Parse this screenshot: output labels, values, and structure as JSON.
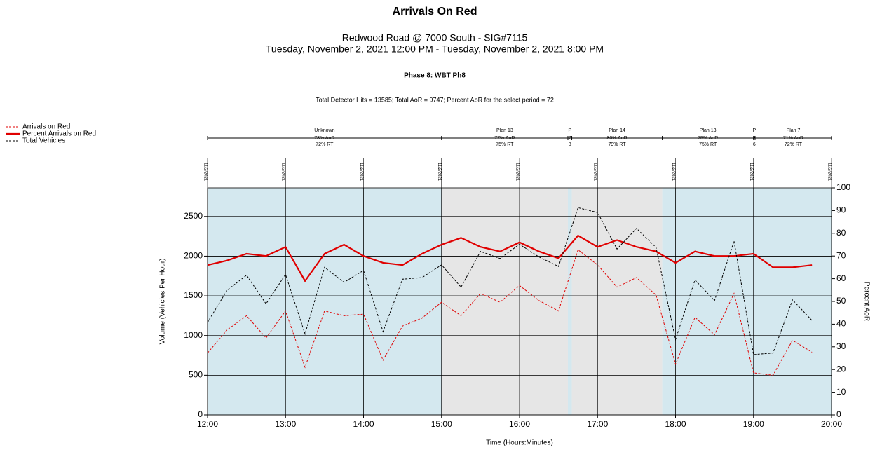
{
  "chart_data": {
    "type": "line",
    "title": "Arrivals On Red",
    "subtitle": [
      "Redwood Road @ 7000 South - SIG#7115",
      "Tuesday, November 2, 2021 12:00 PM - Tuesday, November 2, 2021 8:00 PM"
    ],
    "phase": "Phase 8: WBT Ph8",
    "summary": "Total Detector Hits = 13585; Total AoR = 9747; Percent AoR for the select period = 72",
    "x_label": "Time (Hours:Minutes)",
    "y_label": "Volume (Vehicles Per Hour)",
    "y2_label": "Percent AoR",
    "x": [
      12,
      12.25,
      12.5,
      12.75,
      13,
      13.25,
      13.5,
      13.75,
      14,
      14.25,
      14.5,
      14.75,
      15,
      15.25,
      15.5,
      15.75,
      16,
      16.25,
      16.5,
      16.75,
      17,
      17.25,
      17.5,
      17.75,
      18,
      18.25,
      18.5,
      18.75,
      19,
      19.25,
      19.5,
      19.75
    ],
    "xlim": [
      12,
      20
    ],
    "xticks": [
      {
        "value": 12,
        "label": "12:00"
      },
      {
        "value": 13,
        "label": "13:00"
      },
      {
        "value": 14,
        "label": "14:00"
      },
      {
        "value": 15,
        "label": "15:00"
      },
      {
        "value": 16,
        "label": "16:00"
      },
      {
        "value": 17,
        "label": "17:00"
      },
      {
        "value": 18,
        "label": "18:00"
      },
      {
        "value": 19,
        "label": "19:00"
      },
      {
        "value": 20,
        "label": "20:00"
      }
    ],
    "date_labels": [
      "11/2/2021",
      "11/2/2021",
      "11/2/2021",
      "11/2/2021",
      "11/2/2021",
      "11/2/2021",
      "11/2/2021",
      "11/2/2021",
      "11/2/2021"
    ],
    "ylim": [
      0,
      2860
    ],
    "yticks": [
      0,
      500,
      1000,
      1500,
      2000,
      2500
    ],
    "y2lim": [
      0,
      100
    ],
    "y2ticks": [
      0,
      10,
      20,
      30,
      40,
      50,
      60,
      70,
      80,
      90,
      100
    ],
    "grid": true,
    "legend": "top-left",
    "series": [
      {
        "name": "Arrivals on Red",
        "color": "#e00000",
        "dash": true,
        "width": 1,
        "values": [
          780,
          1070,
          1250,
          970,
          1310,
          600,
          1310,
          1250,
          1270,
          690,
          1120,
          1220,
          1420,
          1250,
          1530,
          1420,
          1630,
          1440,
          1310,
          2080,
          1890,
          1610,
          1730,
          1510,
          640,
          1230,
          1010,
          1530,
          530,
          500,
          940,
          790
        ]
      },
      {
        "name": "Percent Arrivals on Red",
        "color": "#e00000",
        "dash": false,
        "width": 2.2,
        "axis": "y2",
        "values": [
          66,
          68,
          71,
          70,
          74,
          59,
          71,
          75,
          70,
          67,
          66,
          71,
          75,
          78,
          74,
          72,
          76,
          72,
          69,
          79,
          74,
          77,
          74,
          72,
          67,
          72,
          70,
          70,
          71,
          65,
          65,
          66
        ]
      },
      {
        "name": "Total Vehicles",
        "color": "#000000",
        "dash": true,
        "width": 1,
        "values": [
          1166,
          1570,
          1760,
          1400,
          1770,
          1020,
          1860,
          1670,
          1820,
          1050,
          1710,
          1730,
          1890,
          1610,
          2060,
          1970,
          2150,
          1990,
          1870,
          2610,
          2550,
          2090,
          2350,
          2110,
          950,
          1700,
          1440,
          2190,
          760,
          780,
          1450,
          1190
        ]
      }
    ],
    "plans": [
      {
        "name": "Unknown",
        "start": 12,
        "end": 15,
        "aor": "73% AoR",
        "rt": "72% RT",
        "color": "#d4e8ef"
      },
      {
        "name": "Plan 13",
        "start": 15,
        "end": 16.62,
        "aor": "77% AoR",
        "rt": "75% RT",
        "color": "#e6e6e6"
      },
      {
        "name": "P",
        "start": 16.62,
        "end": 16.67,
        "aor": "7",
        "rt": "8",
        "color": "#d4e8ef"
      },
      {
        "name": "Plan 14",
        "start": 16.67,
        "end": 17.83,
        "aor": "80% AoR",
        "rt": "79% RT",
        "color": "#e6e6e6"
      },
      {
        "name": "Plan 13",
        "start": 17.83,
        "end": 19,
        "aor": "75% AoR",
        "rt": "75% RT",
        "color": "#d4e8ef"
      },
      {
        "name": "P",
        "start": 19,
        "end": 19.02,
        "aor": "3",
        "rt": "6",
        "color": "#d4e8ef"
      },
      {
        "name": "Plan 7",
        "start": 19.02,
        "end": 20,
        "aor": "71% AoR",
        "rt": "72% RT",
        "color": "#d4e8ef"
      }
    ]
  }
}
